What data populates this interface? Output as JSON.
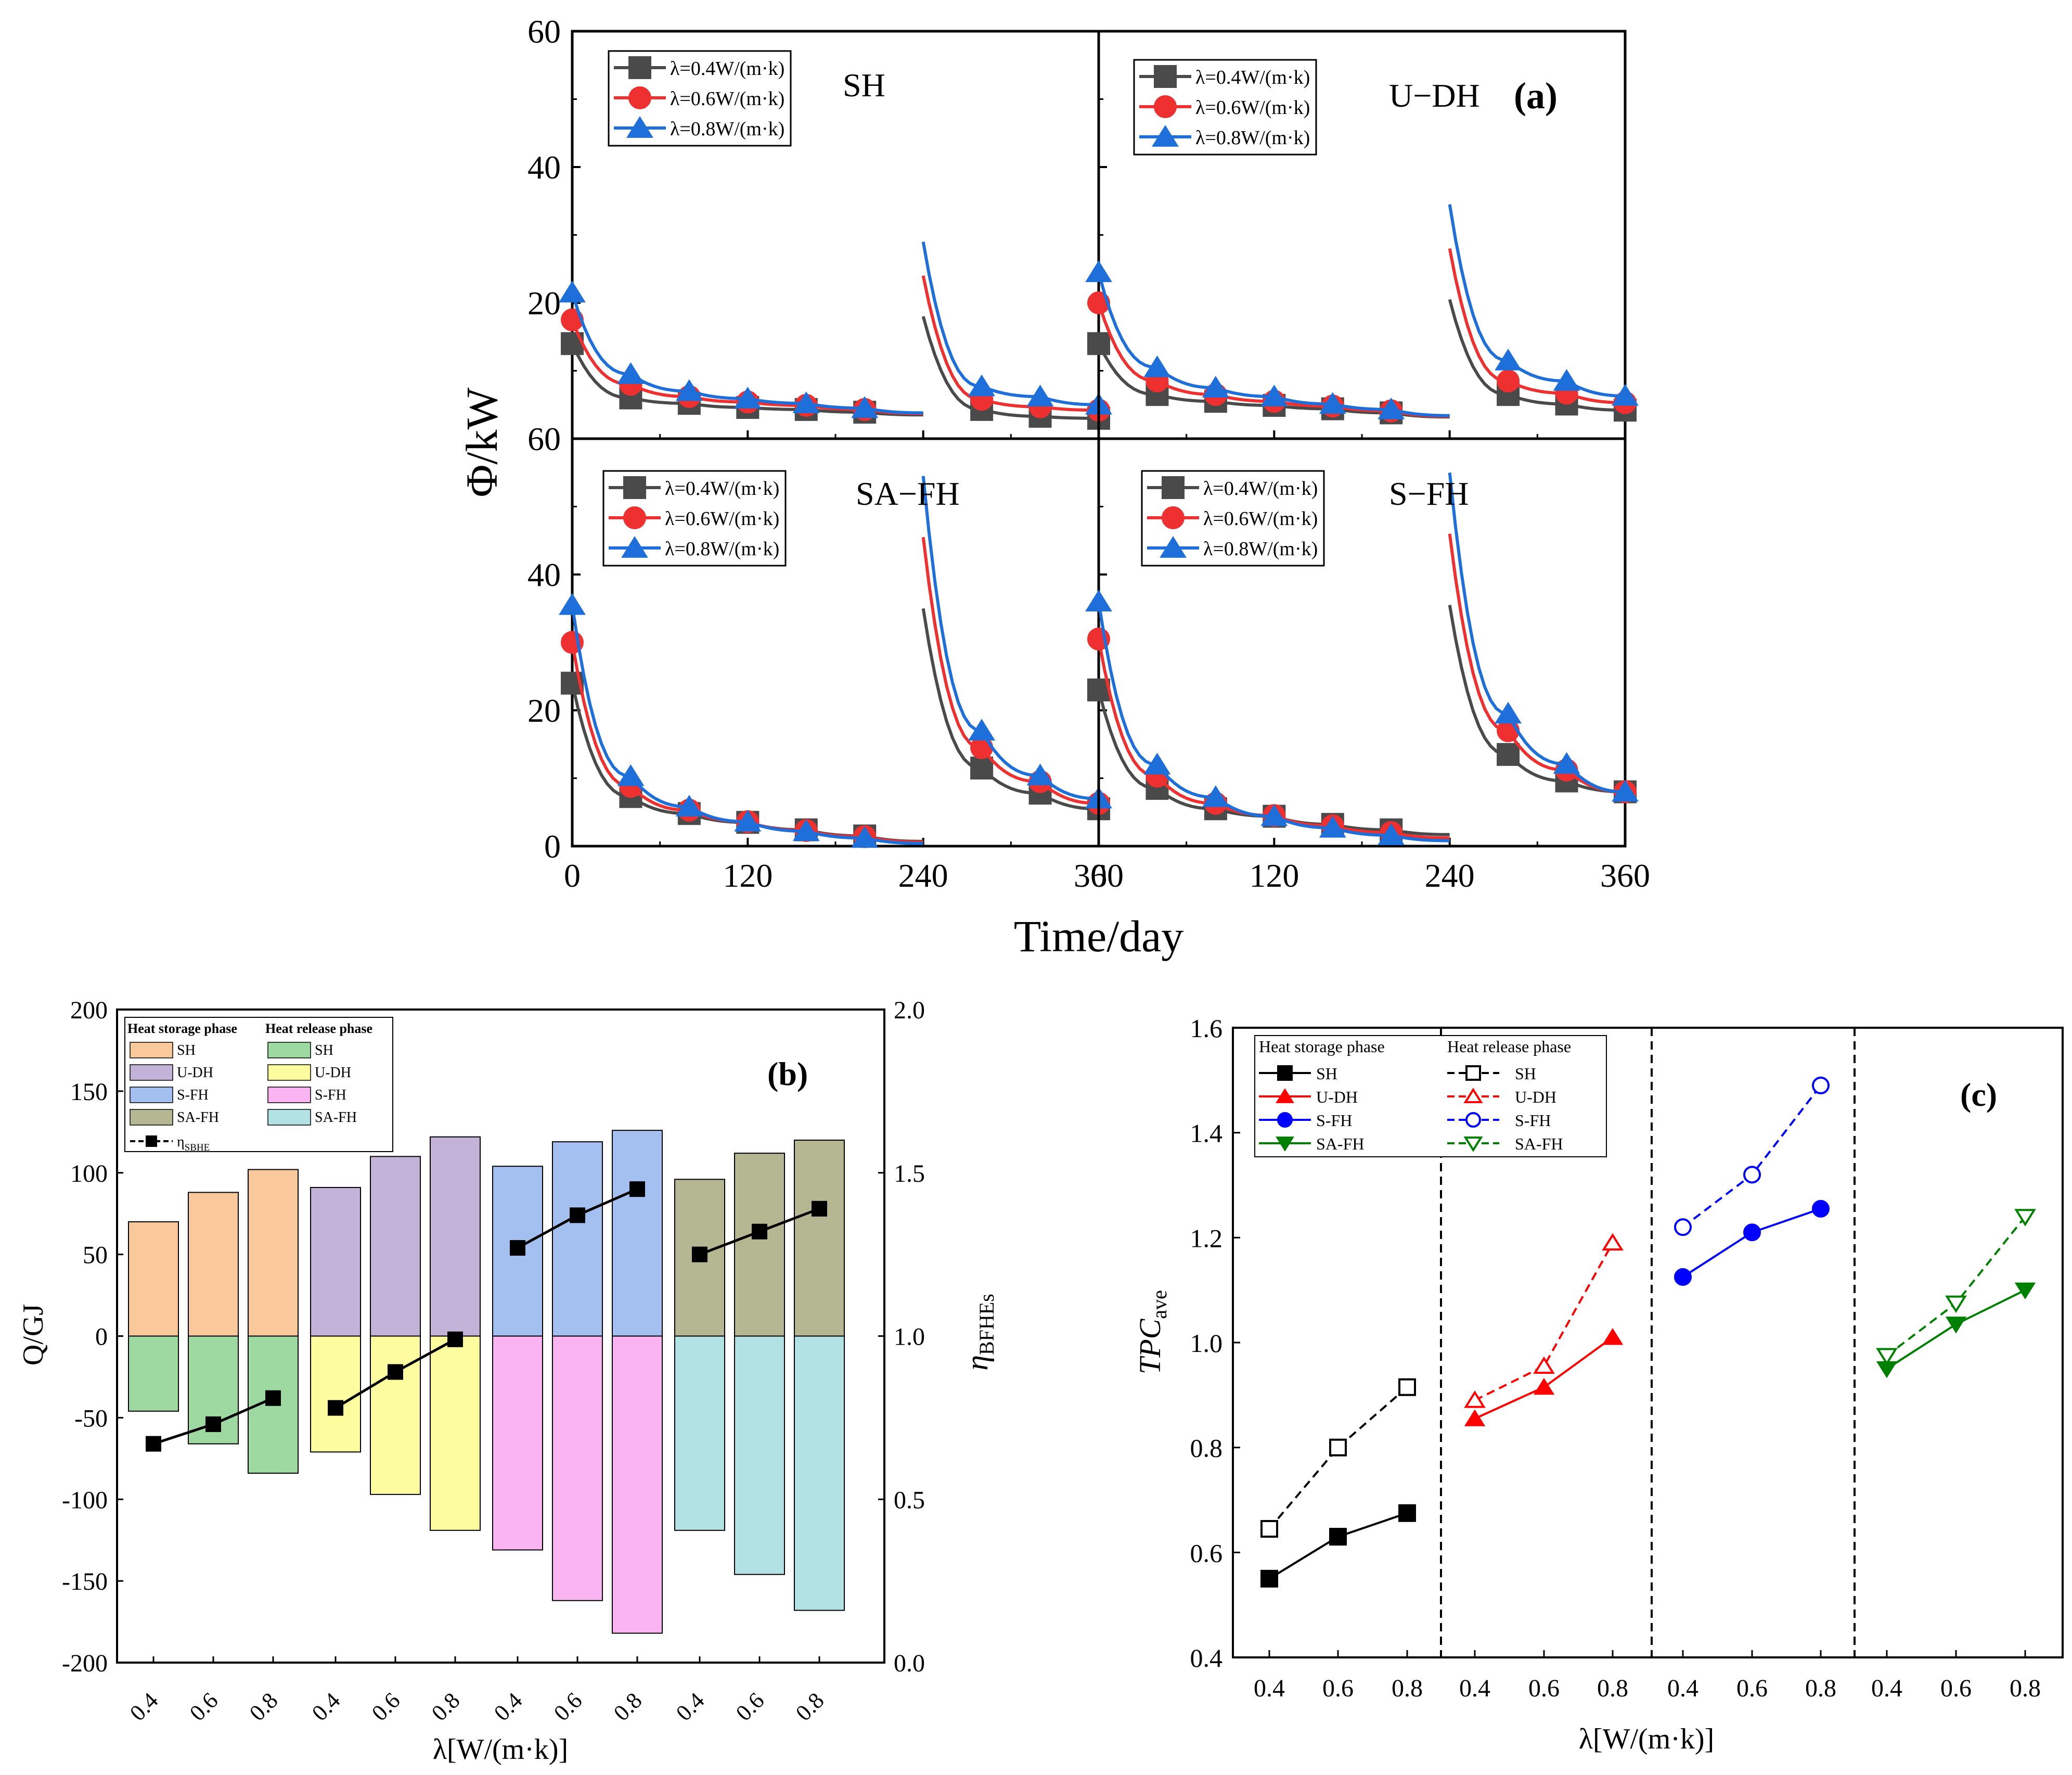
{
  "chart_data": [
    {
      "panel": "a",
      "type": "line",
      "panel_label": "(a)",
      "ylabel": "Φ/kW",
      "xlabel": "Time/day",
      "xlim": [
        0,
        360
      ],
      "x_ticks": [
        "0",
        "120",
        "240",
        "360"
      ],
      "subplots": [
        {
          "name": "SH",
          "ylim": [
            0,
            60
          ],
          "y_ticks": [
            "60",
            "40",
            "20"
          ],
          "legend": [
            "λ=0.4W/(m·k)",
            "λ=0.6W/(m·k)",
            "λ=0.8W/(m·k)"
          ],
          "series": [
            {
              "name": "λ=0.4W/(m·k)",
              "phase1": [
                14,
                6,
                5.2,
                4.6,
                4.3,
                3.9,
                3.5
              ],
              "phase2": [
                18,
                9.5,
                4.3,
                3.3,
                3
              ]
            },
            {
              "name": "λ=0.6W/(m·k)",
              "phase1": [
                17.5,
                8,
                6.2,
                5.4,
                4.9,
                4.3,
                3.7
              ],
              "phase2": [
                24,
                13,
                5.8,
                4.7,
                4.2
              ]
            },
            {
              "name": "λ=0.8W/(m·k)",
              "phase1": [
                21.5,
                9.5,
                7,
                5.9,
                5.2,
                4.5,
                3.8
              ],
              "phase2": [
                29,
                16,
                7.7,
                6.2,
                5
              ]
            }
          ]
        },
        {
          "name": "U−DH",
          "ylim": [
            0,
            60
          ],
          "y_ticks": [],
          "legend": [
            "λ=0.4W/(m·k)",
            "λ=0.6W/(m·k)",
            "λ=0.8W/(m·k)"
          ],
          "series": [
            {
              "name": "λ=0.4W/(m·k)",
              "phase1": [
                14,
                6.5,
                5.5,
                4.9,
                4.4,
                3.8,
                3.2
              ],
              "phase2": [
                20.5,
                12,
                6.5,
                5.1,
                4.2
              ]
            },
            {
              "name": "λ=0.6W/(m·k)",
              "phase1": [
                20,
                8.5,
                6.5,
                5.5,
                4.8,
                4.1,
                3.3
              ],
              "phase2": [
                28,
                16,
                8.5,
                6.7,
                5.3
              ]
            },
            {
              "name": "λ=0.8W/(m·k)",
              "phase1": [
                24.5,
                10.5,
                7.5,
                6.2,
                5.1,
                4.3,
                3.4
              ],
              "phase2": [
                34.5,
                20,
                11.5,
                8.5,
                6.3
              ]
            }
          ]
        },
        {
          "name": "SA−FH",
          "ylim": [
            0,
            60
          ],
          "y_ticks": [
            "60",
            "40",
            "20",
            "0"
          ],
          "legend": [
            "λ=0.4W/(m·k)",
            "λ=0.6W/(m·k)",
            "λ=0.8W/(m·k)"
          ],
          "series": [
            {
              "name": "λ=0.4W/(m·k)",
              "phase1": [
                24,
                7.3,
                4.8,
                3.5,
                2.4,
                1.5,
                0.7
              ],
              "phase2": [
                35,
                20,
                11.5,
                7.8,
                5.5
              ]
            },
            {
              "name": "λ=0.6W/(m·k)",
              "phase1": [
                30,
                8.8,
                5.3,
                3.6,
                2.3,
                1.4,
                0.6
              ],
              "phase2": [
                45.5,
                25,
                14.5,
                9.5,
                6.3
              ]
            },
            {
              "name": "λ=0.8W/(m·k)",
              "phase1": [
                35.5,
                10.3,
                5.8,
                3.6,
                2.2,
                1.2,
                0.4
              ],
              "phase2": [
                54.5,
                30,
                17,
                10.4,
                7
              ]
            }
          ]
        },
        {
          "name": "S−FH",
          "ylim": [
            0,
            60
          ],
          "y_ticks": [],
          "legend": [
            "λ=0.4W/(m·k)",
            "λ=0.6W/(m·k)",
            "λ=0.8W/(m·k)"
          ],
          "series": [
            {
              "name": "λ=0.4W/(m·k)",
              "phase1": [
                23,
                8.5,
                5.5,
                4.4,
                3.2,
                2.4,
                1.7
              ],
              "phase2": [
                35.5,
                22,
                13.5,
                9.6,
                8
              ]
            },
            {
              "name": "λ=0.6W/(m·k)",
              "phase1": [
                30.5,
                10.3,
                6.3,
                4.5,
                3,
                2,
                1.2
              ],
              "phase2": [
                46,
                28,
                17,
                11.2,
                8
              ]
            },
            {
              "name": "λ=0.8W/(m·k)",
              "phase1": [
                36,
                12,
                7.2,
                4.4,
                2.7,
                1.6,
                0.8
              ],
              "phase2": [
                55,
                32,
                19.5,
                12.1,
                8
              ]
            }
          ]
        }
      ]
    },
    {
      "panel": "b",
      "type": "bar",
      "panel_label": "(b)",
      "ylabel": "Q/GJ",
      "y2label": "η",
      "y2label_sub": "BFHEs",
      "xlabel": "λ[W/(m·k)]",
      "ylim": [
        -200,
        200
      ],
      "y_ticks": [
        "200",
        "150",
        "100",
        "50",
        "0",
        "-50",
        "-100",
        "-150",
        "-200"
      ],
      "y2lim": [
        0,
        2
      ],
      "y2_ticks": [
        "2.0",
        "1.5",
        "1.0",
        "0.5",
        "0.0"
      ],
      "categories": [
        "0.4",
        "0.6",
        "0.8",
        "0.4",
        "0.6",
        "0.8",
        "0.4",
        "0.6",
        "0.8",
        "0.4",
        "0.6",
        "0.8"
      ],
      "groups": [
        "SH",
        "U-DH",
        "S-FH",
        "SA-FH"
      ],
      "legend_titles": [
        "Heat storage phase",
        "Heat release phase"
      ],
      "legend_storage": [
        "SH",
        "U-DH",
        "S-FH",
        "SA-FH"
      ],
      "legend_release": [
        "SH",
        "U-DH",
        "S-FH",
        "SA-FH"
      ],
      "legend_eta": "η",
      "legend_eta_sub": "SBHE",
      "storage": [
        70,
        88,
        102,
        91,
        110,
        122,
        104,
        119,
        126,
        96,
        112,
        120
      ],
      "release": [
        -46,
        -66,
        -84,
        -71,
        -97,
        -119,
        -131,
        -162,
        -182,
        -119,
        -146,
        -168
      ],
      "eta": [
        0.67,
        0.73,
        0.81,
        0.78,
        0.89,
        0.99,
        1.27,
        1.37,
        1.45,
        1.25,
        1.32,
        1.39
      ],
      "colors_storage": [
        "#f9c89b",
        "#c3b3d8",
        "#a3c0f0",
        "#b4b792"
      ],
      "colors_release": [
        "#9fd9a2",
        "#fdfc9e",
        "#fab4f2",
        "#b3e2e5"
      ]
    },
    {
      "panel": "c",
      "type": "line",
      "panel_label": "(c)",
      "ylabel": "TPC",
      "ylabel_sub": "ave",
      "xlabel": "λ[W/(m·k)]",
      "ylim": [
        0.4,
        1.6
      ],
      "y_ticks": [
        "1.6",
        "1.4",
        "1.2",
        "1.0",
        "0.8",
        "0.6",
        "0.4"
      ],
      "x_tick_labels": [
        "0.4",
        "0.6",
        "0.8"
      ],
      "legend_titles": [
        "Heat storage phase",
        "Heat release phase"
      ],
      "series": [
        {
          "name": "SH",
          "color": "#000000",
          "storage": [
            0.55,
            0.63,
            0.675
          ],
          "release": [
            0.645,
            0.8,
            0.915
          ]
        },
        {
          "name": "U-DH",
          "color": "#ff0000",
          "storage": [
            0.855,
            0.915,
            1.01
          ],
          "release": [
            0.89,
            0.955,
            1.19
          ]
        },
        {
          "name": "S-FH",
          "color": "#0000ff",
          "storage": [
            1.125,
            1.21,
            1.255
          ],
          "release": [
            1.22,
            1.32,
            1.49
          ]
        },
        {
          "name": "SA-FH",
          "color": "#008000",
          "storage": [
            0.95,
            1.035,
            1.1
          ],
          "release": [
            0.975,
            1.075,
            1.24
          ]
        }
      ]
    }
  ]
}
